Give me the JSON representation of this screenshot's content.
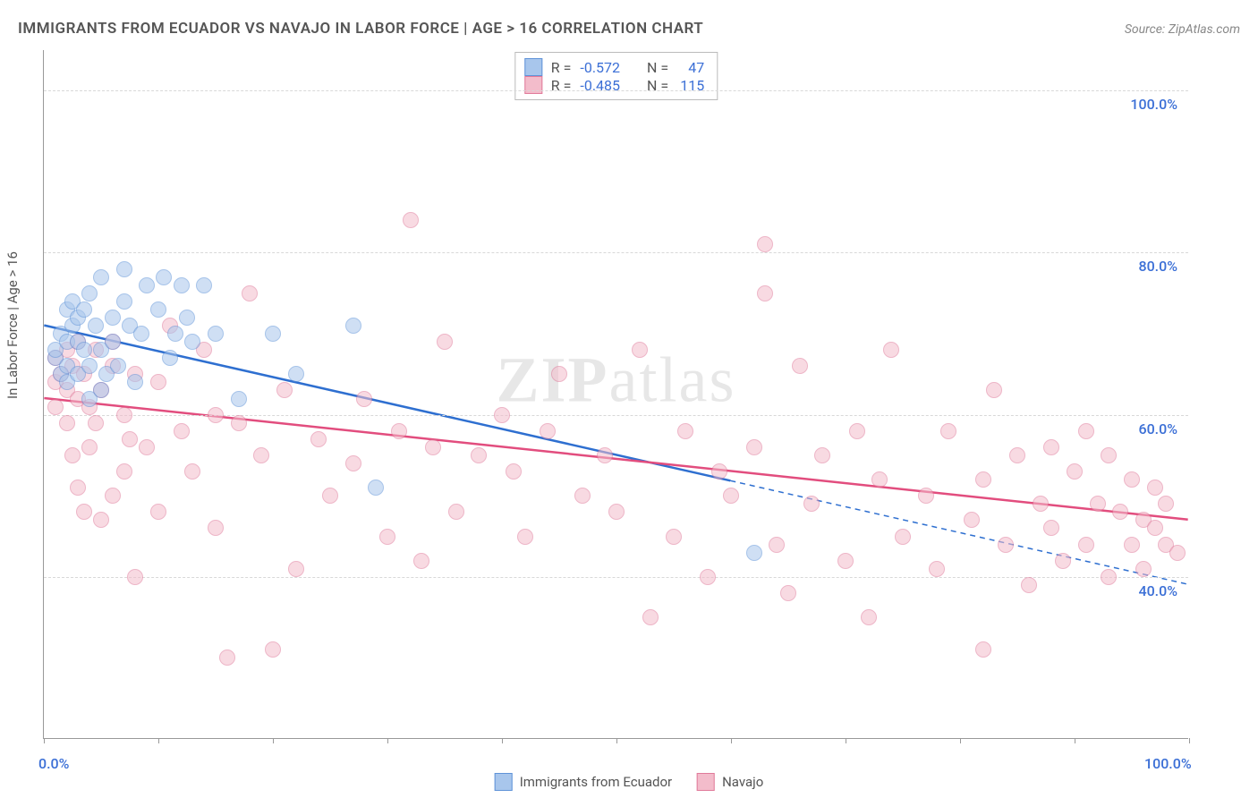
{
  "title": "IMMIGRANTS FROM ECUADOR VS NAVAJO IN LABOR FORCE | AGE > 16 CORRELATION CHART",
  "source": "Source: ZipAtlas.com",
  "ylabel": "In Labor Force | Age > 16",
  "watermark_a": "ZIP",
  "watermark_b": "atlas",
  "chart": {
    "type": "scatter",
    "background_color": "#ffffff",
    "grid_color": "#d8d8d8",
    "axis_color": "#999999",
    "label_color": "#555555",
    "value_color": "#3b6fd6",
    "title_fontsize": 17,
    "label_fontsize": 15,
    "tick_fontsize": 16,
    "xlim": [
      0,
      100
    ],
    "ylim": [
      20,
      105
    ],
    "y_gridlines": [
      40,
      60,
      80,
      100
    ],
    "y_tick_labels": [
      "40.0%",
      "60.0%",
      "80.0%",
      "100.0%"
    ],
    "x_ticks": [
      0,
      10,
      20,
      30,
      40,
      50,
      60,
      70,
      80,
      90,
      100
    ],
    "x_tick_labels": {
      "0": "0.0%",
      "100": "100.0%"
    },
    "marker_radius": 9,
    "marker_border_width": 1.5,
    "trend_line_width": 2.5
  },
  "series": [
    {
      "name": "Immigrants from Ecuador",
      "fill": "#a8c6ec",
      "stroke": "#5f93d8",
      "fill_opacity": 0.55,
      "trend_color": "#2e6fd0",
      "R": "-0.572",
      "N": "47",
      "trend": {
        "x1": 0,
        "y1": 71,
        "x2": 60,
        "y2": 51.8,
        "ext_x2": 100,
        "ext_y2": 39
      },
      "points": [
        [
          1,
          67
        ],
        [
          1,
          68
        ],
        [
          1.5,
          70
        ],
        [
          1.5,
          65
        ],
        [
          2,
          73
        ],
        [
          2,
          69
        ],
        [
          2,
          66
        ],
        [
          2,
          64
        ],
        [
          2.5,
          71
        ],
        [
          2.5,
          74
        ],
        [
          3,
          72
        ],
        [
          3,
          69
        ],
        [
          3,
          65
        ],
        [
          3.5,
          73
        ],
        [
          3.5,
          68
        ],
        [
          4,
          75
        ],
        [
          4,
          66
        ],
        [
          4,
          62
        ],
        [
          4.5,
          71
        ],
        [
          5,
          77
        ],
        [
          5,
          68
        ],
        [
          5,
          63
        ],
        [
          5.5,
          65
        ],
        [
          6,
          72
        ],
        [
          6,
          69
        ],
        [
          6.5,
          66
        ],
        [
          7,
          74
        ],
        [
          7,
          78
        ],
        [
          7.5,
          71
        ],
        [
          8,
          64
        ],
        [
          8.5,
          70
        ],
        [
          9,
          76
        ],
        [
          10,
          73
        ],
        [
          10.5,
          77
        ],
        [
          11,
          67
        ],
        [
          11.5,
          70
        ],
        [
          12,
          76
        ],
        [
          12.5,
          72
        ],
        [
          13,
          69
        ],
        [
          14,
          76
        ],
        [
          15,
          70
        ],
        [
          17,
          62
        ],
        [
          20,
          70
        ],
        [
          22,
          65
        ],
        [
          27,
          71
        ],
        [
          29,
          51
        ],
        [
          62,
          43
        ]
      ]
    },
    {
      "name": "Navajo",
      "fill": "#f3bccb",
      "stroke": "#e07a9a",
      "fill_opacity": 0.55,
      "trend_color": "#e24d7e",
      "R": "-0.485",
      "N": "115",
      "trend": {
        "x1": 0,
        "y1": 62,
        "x2": 100,
        "y2": 47
      },
      "points": [
        [
          1,
          67
        ],
        [
          1,
          64
        ],
        [
          1,
          61
        ],
        [
          1.5,
          65
        ],
        [
          2,
          68
        ],
        [
          2,
          63
        ],
        [
          2,
          59
        ],
        [
          2.5,
          66
        ],
        [
          2.5,
          55
        ],
        [
          3,
          62
        ],
        [
          3,
          69
        ],
        [
          3,
          51
        ],
        [
          3.5,
          48
        ],
        [
          3.5,
          65
        ],
        [
          4,
          61
        ],
        [
          4,
          56
        ],
        [
          4.5,
          59
        ],
        [
          4.5,
          68
        ],
        [
          5,
          47
        ],
        [
          5,
          63
        ],
        [
          6,
          66
        ],
        [
          6,
          50
        ],
        [
          6,
          69
        ],
        [
          7,
          60
        ],
        [
          7,
          53
        ],
        [
          7.5,
          57
        ],
        [
          8,
          65
        ],
        [
          8,
          40
        ],
        [
          9,
          56
        ],
        [
          10,
          64
        ],
        [
          10,
          48
        ],
        [
          11,
          71
        ],
        [
          12,
          58
        ],
        [
          13,
          53
        ],
        [
          14,
          68
        ],
        [
          15,
          46
        ],
        [
          15,
          60
        ],
        [
          16,
          30
        ],
        [
          17,
          59
        ],
        [
          18,
          75
        ],
        [
          19,
          55
        ],
        [
          20,
          31
        ],
        [
          21,
          63
        ],
        [
          22,
          41
        ],
        [
          24,
          57
        ],
        [
          25,
          50
        ],
        [
          27,
          54
        ],
        [
          28,
          62
        ],
        [
          30,
          45
        ],
        [
          31,
          58
        ],
        [
          32,
          84
        ],
        [
          33,
          42
        ],
        [
          34,
          56
        ],
        [
          35,
          69
        ],
        [
          36,
          48
        ],
        [
          38,
          55
        ],
        [
          40,
          60
        ],
        [
          41,
          53
        ],
        [
          42,
          45
        ],
        [
          44,
          58
        ],
        [
          45,
          65
        ],
        [
          47,
          50
        ],
        [
          49,
          55
        ],
        [
          50,
          48
        ],
        [
          52,
          68
        ],
        [
          53,
          35
        ],
        [
          55,
          45
        ],
        [
          56,
          58
        ],
        [
          58,
          40
        ],
        [
          59,
          53
        ],
        [
          60,
          50
        ],
        [
          62,
          56
        ],
        [
          63,
          81
        ],
        [
          63,
          75
        ],
        [
          64,
          44
        ],
        [
          65,
          38
        ],
        [
          66,
          66
        ],
        [
          67,
          49
        ],
        [
          68,
          55
        ],
        [
          70,
          42
        ],
        [
          71,
          58
        ],
        [
          72,
          35
        ],
        [
          73,
          52
        ],
        [
          74,
          68
        ],
        [
          75,
          45
        ],
        [
          77,
          50
        ],
        [
          78,
          41
        ],
        [
          79,
          58
        ],
        [
          81,
          47
        ],
        [
          82,
          31
        ],
        [
          82,
          52
        ],
        [
          83,
          63
        ],
        [
          84,
          44
        ],
        [
          85,
          55
        ],
        [
          86,
          39
        ],
        [
          87,
          49
        ],
        [
          88,
          56
        ],
        [
          88,
          46
        ],
        [
          89,
          42
        ],
        [
          90,
          53
        ],
        [
          91,
          58
        ],
        [
          91,
          44
        ],
        [
          92,
          49
        ],
        [
          93,
          40
        ],
        [
          93,
          55
        ],
        [
          94,
          48
        ],
        [
          95,
          44
        ],
        [
          95,
          52
        ],
        [
          96,
          47
        ],
        [
          96,
          41
        ],
        [
          97,
          46
        ],
        [
          97,
          51
        ],
        [
          98,
          44
        ],
        [
          98,
          49
        ],
        [
          99,
          43
        ]
      ]
    }
  ],
  "legend": {
    "series_a": "Immigrants from Ecuador",
    "series_b": "Navajo",
    "r_label": "R =",
    "n_label": "N ="
  }
}
